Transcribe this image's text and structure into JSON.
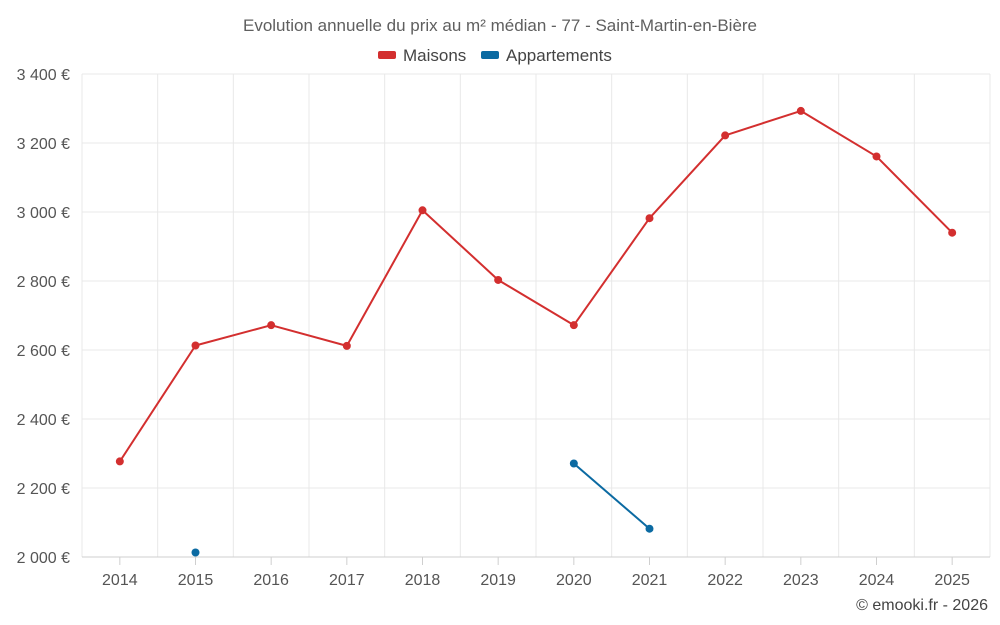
{
  "chart_data": {
    "type": "line",
    "title": "Evolution annuelle du prix au m² médian - 77 - Saint-Martin-en-Bière",
    "categories": [
      "2014",
      "2015",
      "2016",
      "2017",
      "2018",
      "2019",
      "2020",
      "2021",
      "2022",
      "2023",
      "2024",
      "2025"
    ],
    "y_ticks": [
      2000,
      2200,
      2400,
      2600,
      2800,
      3000,
      3200,
      3400
    ],
    "y_tick_labels": [
      "2 000 €",
      "2 200 €",
      "2 400 €",
      "2 600 €",
      "2 800 €",
      "3 000 €",
      "3 200 €",
      "3 400 €"
    ],
    "ylim": [
      2000,
      3400
    ],
    "grid": true,
    "legend_position": "top-center",
    "series": [
      {
        "name": "Maisons",
        "color": "#d32f2f",
        "values": [
          2277,
          2613,
          2672,
          2612,
          3005,
          2803,
          2672,
          2982,
          3222,
          3293,
          3161,
          2940
        ]
      },
      {
        "name": "Appartements",
        "color": "#0b6aa2",
        "values": [
          null,
          2013,
          null,
          null,
          null,
          null,
          2271,
          2082,
          null,
          null,
          null,
          null
        ]
      }
    ]
  },
  "credit": "© emooki.fr - 2026"
}
